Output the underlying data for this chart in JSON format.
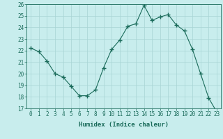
{
  "x": [
    0,
    1,
    2,
    3,
    4,
    5,
    6,
    7,
    8,
    9,
    10,
    11,
    12,
    13,
    14,
    15,
    16,
    17,
    18,
    19,
    20,
    21,
    22,
    23
  ],
  "y": [
    22.2,
    21.9,
    21.1,
    20.0,
    19.7,
    18.9,
    18.1,
    18.1,
    18.6,
    20.5,
    22.1,
    22.9,
    24.1,
    24.3,
    25.9,
    24.6,
    24.9,
    25.1,
    24.2,
    23.7,
    22.1,
    20.0,
    17.9,
    16.7
  ],
  "line_color": "#1a6b5a",
  "marker": "+",
  "marker_size": 4,
  "bg_color": "#c8eded",
  "grid_color": "#a8d4d4",
  "xlabel": "Humidex (Indice chaleur)",
  "ylim": [
    17,
    26
  ],
  "xlim": [
    -0.5,
    23.5
  ],
  "yticks": [
    17,
    18,
    19,
    20,
    21,
    22,
    23,
    24,
    25,
    26
  ],
  "xticks": [
    0,
    1,
    2,
    3,
    4,
    5,
    6,
    7,
    8,
    9,
    10,
    11,
    12,
    13,
    14,
    15,
    16,
    17,
    18,
    19,
    20,
    21,
    22,
    23
  ],
  "label_fontsize": 6.5,
  "tick_fontsize": 5.5
}
